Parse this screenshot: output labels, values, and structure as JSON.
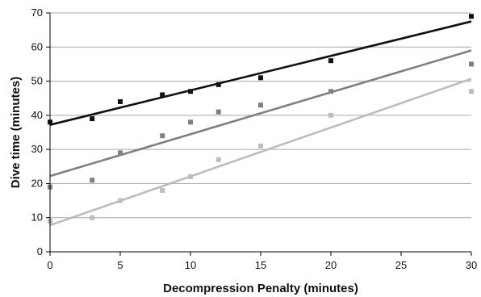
{
  "chart_data": {
    "type": "scatter",
    "xlabel": "Decompression Penalty (minutes)",
    "ylabel": "Dive time (minutes)",
    "xlim": [
      0,
      30
    ],
    "ylim": [
      0,
      70
    ],
    "x_ticks": [
      0,
      5,
      10,
      15,
      20,
      25,
      30
    ],
    "y_ticks": [
      0,
      10,
      20,
      30,
      40,
      50,
      60,
      70
    ],
    "grid": "horizontal",
    "legend": "none",
    "series": [
      {
        "color": "#111111",
        "points": [
          [
            0,
            38
          ],
          [
            3,
            39
          ],
          [
            5,
            44
          ],
          [
            8,
            46
          ],
          [
            10,
            47
          ],
          [
            12,
            49
          ],
          [
            15,
            51
          ],
          [
            20,
            56
          ],
          [
            30,
            69
          ]
        ],
        "trendline": [
          [
            0,
            37.2
          ],
          [
            30,
            67.5
          ]
        ]
      },
      {
        "color": "#808080",
        "points": [
          [
            0,
            19
          ],
          [
            3,
            21
          ],
          [
            5,
            29
          ],
          [
            8,
            34
          ],
          [
            10,
            38
          ],
          [
            12,
            41
          ],
          [
            15,
            43
          ],
          [
            20,
            47
          ],
          [
            30,
            55
          ]
        ],
        "trendline": [
          [
            0,
            22.2
          ],
          [
            30,
            59.0
          ]
        ]
      },
      {
        "color": "#bdbdbd",
        "points": [
          [
            0,
            9
          ],
          [
            3,
            10
          ],
          [
            5,
            15
          ],
          [
            8,
            18
          ],
          [
            10,
            22
          ],
          [
            12,
            27
          ],
          [
            15,
            31
          ],
          [
            20,
            40
          ],
          [
            30,
            47
          ]
        ],
        "trendline": [
          [
            0,
            7.8
          ],
          [
            30,
            50.7
          ]
        ]
      }
    ]
  }
}
